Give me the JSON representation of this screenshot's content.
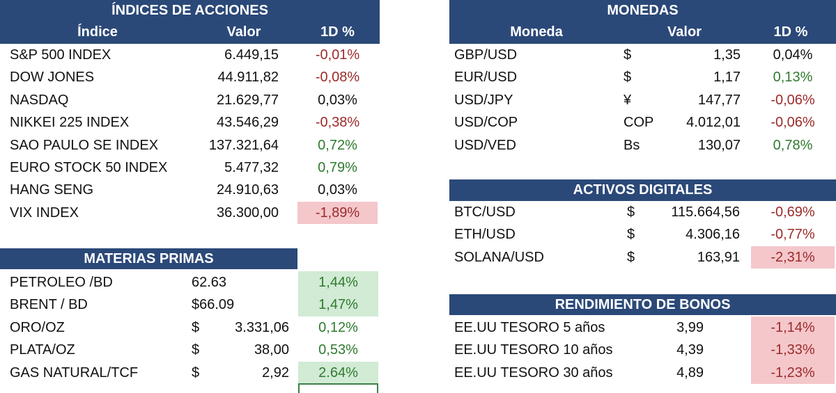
{
  "indices": {
    "title": "ÍNDICES DE ACCIONES",
    "col_name": "Índice",
    "col_value": "Valor",
    "col_change": "1D %",
    "rows": [
      {
        "name": "S&P 500 INDEX",
        "value": "6.449,15",
        "change": "-0,01%",
        "tone": "neg",
        "highlight": ""
      },
      {
        "name": "DOW JONES",
        "value": "44.911,82",
        "change": "-0,08%",
        "tone": "neg",
        "highlight": ""
      },
      {
        "name": "NASDAQ",
        "value": "21.629,77",
        "change": "0,03%",
        "tone": "neu",
        "highlight": ""
      },
      {
        "name": "NIKKEI 225 INDEX",
        "value": "43.546,29",
        "change": "-0,38%",
        "tone": "neg",
        "highlight": ""
      },
      {
        "name": "SAO PAULO SE INDEX",
        "value": "137.321,64",
        "change": "0,72%",
        "tone": "pos",
        "highlight": ""
      },
      {
        "name": "EURO STOCK 50 INDEX",
        "value": "5.477,32",
        "change": "0,79%",
        "tone": "pos",
        "highlight": ""
      },
      {
        "name": "HANG SENG",
        "value": "24.910,63",
        "change": "0,03%",
        "tone": "neu",
        "highlight": ""
      },
      {
        "name": "VIX INDEX",
        "value": "36.300,00",
        "change": "-1,89%",
        "tone": "neg",
        "highlight": "red"
      }
    ]
  },
  "commodities": {
    "title": "MATERIAS PRIMAS",
    "rows": [
      {
        "name": "PETROLEO /BD",
        "symbol": "",
        "value": "62.63",
        "change": "1,44%",
        "tone": "pos",
        "highlight": "green"
      },
      {
        "name": "BRENT / BD",
        "symbol": "",
        "value": "$66.09",
        "change": "1,47%",
        "tone": "pos",
        "highlight": "green"
      },
      {
        "name": "ORO/OZ",
        "symbol": "$",
        "value": "3.331,06",
        "change": "0,12%",
        "tone": "pos",
        "highlight": ""
      },
      {
        "name": "PLATA/OZ",
        "symbol": "$",
        "value": "38,00",
        "change": "0,53%",
        "tone": "pos",
        "highlight": ""
      },
      {
        "name": "GAS NATURAL/TCF",
        "symbol": "$",
        "value": "2,92",
        "change": "2.64%",
        "tone": "pos",
        "highlight": "green"
      }
    ]
  },
  "currencies": {
    "title": "MONEDAS",
    "col_name": "Moneda",
    "col_value": "Valor",
    "col_change": "1D %",
    "rows": [
      {
        "name": "GBP/USD",
        "symbol": "$",
        "value": "1,35",
        "change": "0,04%",
        "tone": "neu",
        "highlight": ""
      },
      {
        "name": "EUR/USD",
        "symbol": "$",
        "value": "1,17",
        "change": "0,13%",
        "tone": "pos",
        "highlight": ""
      },
      {
        "name": "USD/JPY",
        "symbol": "¥",
        "value": "147,77",
        "change": "-0,06%",
        "tone": "neg",
        "highlight": ""
      },
      {
        "name": "USD/COP",
        "symbol": "COP",
        "value": "4.012,01",
        "change": "-0,06%",
        "tone": "neg",
        "highlight": ""
      },
      {
        "name": "USD/VED",
        "symbol": "Bs",
        "value": "130,07",
        "change": "0,78%",
        "tone": "pos",
        "highlight": ""
      }
    ]
  },
  "crypto": {
    "title": "ACTIVOS DIGITALES",
    "rows": [
      {
        "name": "BTC/USD",
        "symbol": "$",
        "value": "115.664,56",
        "change": "-0,69%",
        "tone": "neg",
        "highlight": ""
      },
      {
        "name": "ETH/USD",
        "symbol": "$",
        "value": "4.306,16",
        "change": "-0,77%",
        "tone": "neg",
        "highlight": ""
      },
      {
        "name": "SOLANA/USD",
        "symbol": "$",
        "value": "163,91",
        "change": "-2,31%",
        "tone": "neg",
        "highlight": "red"
      }
    ]
  },
  "bonds": {
    "title": "RENDIMIENTO DE BONOS",
    "rows": [
      {
        "name": "EE.UU TESORO 5 años",
        "value": "3,99",
        "change": "-1,14%",
        "tone": "neg",
        "highlight": "red"
      },
      {
        "name": "EE.UU TESORO 10 años",
        "value": "4,39",
        "change": "-1,33%",
        "tone": "neg",
        "highlight": "red"
      },
      {
        "name": "EE.UU TESORO 30 años",
        "value": "4,89",
        "change": "-1,23%",
        "tone": "neg",
        "highlight": "red"
      }
    ]
  },
  "colors": {
    "header_bg": "#2b4978",
    "negative": "#9c2a2a",
    "positive": "#2f7a2f",
    "highlight_red": "#f4c7cb",
    "highlight_green": "#d1ebd4"
  }
}
